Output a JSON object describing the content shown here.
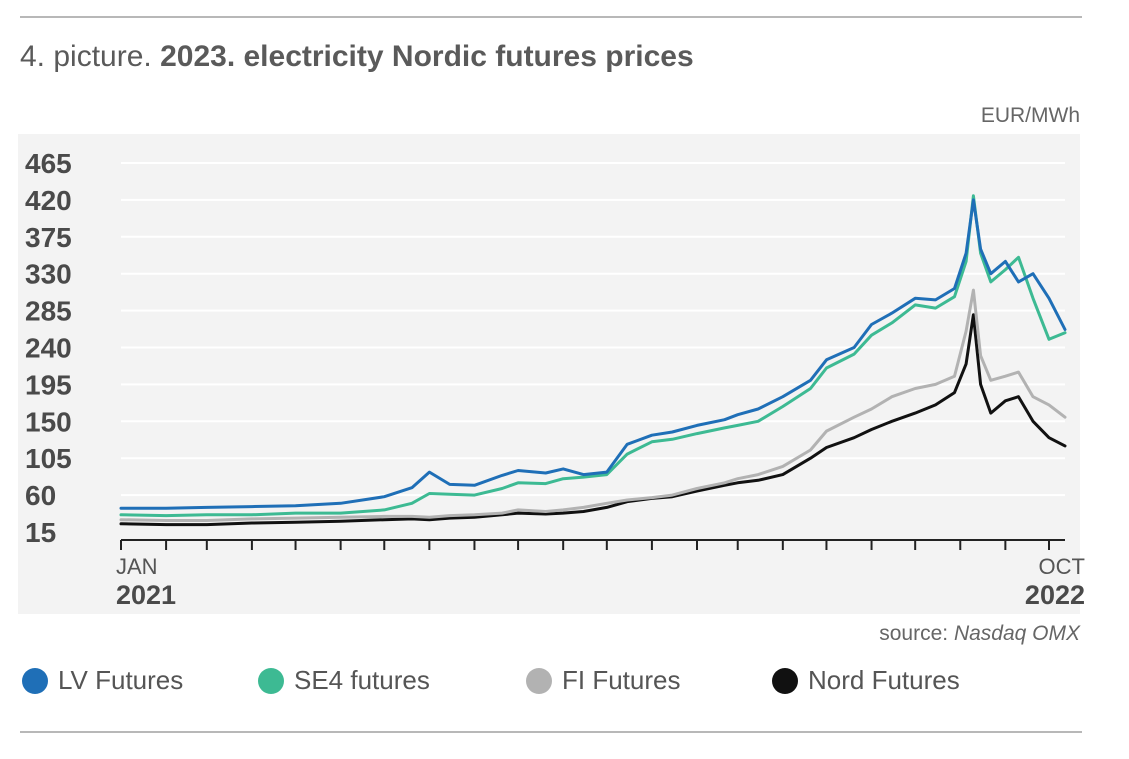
{
  "header": {
    "title_prefix": "4. picture.",
    "title_main": "2023. electricity Nordic futures prices"
  },
  "unit_label": "EUR/MWh",
  "source": {
    "prefix": "source:",
    "name": "Nasdaq OMX"
  },
  "legend": [
    {
      "label": "LV Futures",
      "color": "#1f6fb7"
    },
    {
      "label": "SE4 futures",
      "color": "#3dba93"
    },
    {
      "label": "FI Futures",
      "color": "#b2b2b2"
    },
    {
      "label": "Nord Futures",
      "color": "#111111"
    }
  ],
  "chart_data": {
    "type": "line",
    "title": "2023. electricity Nordic futures prices",
    "ylabel": "EUR/MWh",
    "ylim": [
      15,
      465
    ],
    "yticks": [
      15,
      60,
      105,
      150,
      195,
      240,
      285,
      330,
      375,
      420,
      465
    ],
    "xlim": [
      "2021-01-01",
      "2022-10-12"
    ],
    "x_tick_labels": [
      {
        "month": "JAN",
        "year": "2021",
        "date": "2021-01-01"
      },
      {
        "month": "OCT",
        "year": "2022",
        "date": "2022-10-01"
      }
    ],
    "grid": true,
    "legend_position": "bottom",
    "series": [
      {
        "name": "LV Futures",
        "color": "#1f6fb7",
        "x": [
          "2021-01-01",
          "2021-02-01",
          "2021-03-01",
          "2021-04-01",
          "2021-05-01",
          "2021-06-01",
          "2021-07-01",
          "2021-07-20",
          "2021-08-01",
          "2021-08-15",
          "2021-09-01",
          "2021-09-20",
          "2021-10-01",
          "2021-10-20",
          "2021-11-01",
          "2021-11-15",
          "2021-12-01",
          "2021-12-15",
          "2022-01-01",
          "2022-01-15",
          "2022-02-01",
          "2022-02-20",
          "2022-03-01",
          "2022-03-15",
          "2022-04-01",
          "2022-04-20",
          "2022-05-01",
          "2022-05-20",
          "2022-06-01",
          "2022-06-15",
          "2022-07-01",
          "2022-07-15",
          "2022-07-28",
          "2022-08-05",
          "2022-08-10",
          "2022-08-15",
          "2022-08-22",
          "2022-09-01",
          "2022-09-10",
          "2022-09-20",
          "2022-10-01",
          "2022-10-12"
        ],
        "values": [
          44,
          44,
          45,
          46,
          47,
          50,
          58,
          69,
          88,
          73,
          72,
          84,
          90,
          87,
          92,
          85,
          88,
          122,
          133,
          137,
          145,
          152,
          158,
          165,
          180,
          200,
          225,
          240,
          268,
          282,
          300,
          298,
          312,
          355,
          420,
          360,
          330,
          345,
          320,
          330,
          300,
          262
        ]
      },
      {
        "name": "SE4 futures",
        "color": "#3dba93",
        "x": [
          "2021-01-01",
          "2021-02-01",
          "2021-03-01",
          "2021-04-01",
          "2021-05-01",
          "2021-06-01",
          "2021-07-01",
          "2021-07-20",
          "2021-08-01",
          "2021-08-15",
          "2021-09-01",
          "2021-09-20",
          "2021-10-01",
          "2021-10-20",
          "2021-11-01",
          "2021-11-15",
          "2021-12-01",
          "2021-12-15",
          "2022-01-01",
          "2022-01-15",
          "2022-02-01",
          "2022-02-20",
          "2022-03-01",
          "2022-03-15",
          "2022-04-01",
          "2022-04-20",
          "2022-05-01",
          "2022-05-20",
          "2022-06-01",
          "2022-06-15",
          "2022-07-01",
          "2022-07-15",
          "2022-07-28",
          "2022-08-05",
          "2022-08-10",
          "2022-08-15",
          "2022-08-22",
          "2022-09-01",
          "2022-09-10",
          "2022-09-20",
          "2022-10-01",
          "2022-10-12"
        ],
        "values": [
          36,
          35,
          36,
          36,
          38,
          38,
          42,
          50,
          62,
          61,
          60,
          68,
          75,
          74,
          80,
          82,
          85,
          110,
          125,
          128,
          135,
          142,
          145,
          150,
          168,
          190,
          215,
          232,
          255,
          270,
          292,
          288,
          302,
          345,
          425,
          355,
          320,
          335,
          350,
          300,
          250,
          258
        ]
      },
      {
        "name": "FI Futures",
        "color": "#b2b2b2",
        "x": [
          "2021-01-01",
          "2021-02-01",
          "2021-03-01",
          "2021-04-01",
          "2021-05-01",
          "2021-06-01",
          "2021-07-01",
          "2021-07-20",
          "2021-08-01",
          "2021-08-15",
          "2021-09-01",
          "2021-09-20",
          "2021-10-01",
          "2021-10-20",
          "2021-11-01",
          "2021-11-15",
          "2021-12-01",
          "2021-12-15",
          "2022-01-01",
          "2022-01-15",
          "2022-02-01",
          "2022-02-20",
          "2022-03-01",
          "2022-03-15",
          "2022-04-01",
          "2022-04-20",
          "2022-05-01",
          "2022-05-20",
          "2022-06-01",
          "2022-06-15",
          "2022-07-01",
          "2022-07-15",
          "2022-07-28",
          "2022-08-05",
          "2022-08-10",
          "2022-08-15",
          "2022-08-22",
          "2022-09-01",
          "2022-09-10",
          "2022-09-20",
          "2022-10-01",
          "2022-10-12"
        ],
        "values": [
          30,
          29,
          29,
          31,
          32,
          33,
          34,
          34,
          33,
          35,
          36,
          38,
          42,
          40,
          42,
          45,
          50,
          54,
          57,
          60,
          68,
          75,
          80,
          85,
          95,
          115,
          138,
          155,
          165,
          180,
          190,
          195,
          205,
          260,
          310,
          230,
          200,
          205,
          210,
          180,
          170,
          155
        ]
      },
      {
        "name": "Nord Futures",
        "color": "#111111",
        "x": [
          "2021-01-01",
          "2021-02-01",
          "2021-03-01",
          "2021-04-01",
          "2021-05-01",
          "2021-06-01",
          "2021-07-01",
          "2021-07-20",
          "2021-08-01",
          "2021-08-15",
          "2021-09-01",
          "2021-09-20",
          "2021-10-01",
          "2021-10-20",
          "2021-11-01",
          "2021-11-15",
          "2021-12-01",
          "2021-12-15",
          "2022-01-01",
          "2022-01-15",
          "2022-02-01",
          "2022-02-20",
          "2022-03-01",
          "2022-03-15",
          "2022-04-01",
          "2022-04-20",
          "2022-05-01",
          "2022-05-20",
          "2022-06-01",
          "2022-06-15",
          "2022-07-01",
          "2022-07-15",
          "2022-07-28",
          "2022-08-05",
          "2022-08-10",
          "2022-08-15",
          "2022-08-22",
          "2022-09-01",
          "2022-09-10",
          "2022-09-20",
          "2022-10-01",
          "2022-10-12"
        ],
        "values": [
          25,
          24,
          24,
          26,
          27,
          28,
          30,
          31,
          30,
          32,
          33,
          36,
          38,
          37,
          38,
          40,
          45,
          52,
          56,
          58,
          65,
          72,
          75,
          78,
          85,
          105,
          118,
          130,
          140,
          150,
          160,
          170,
          185,
          220,
          280,
          195,
          160,
          175,
          180,
          150,
          130,
          120
        ]
      }
    ]
  }
}
